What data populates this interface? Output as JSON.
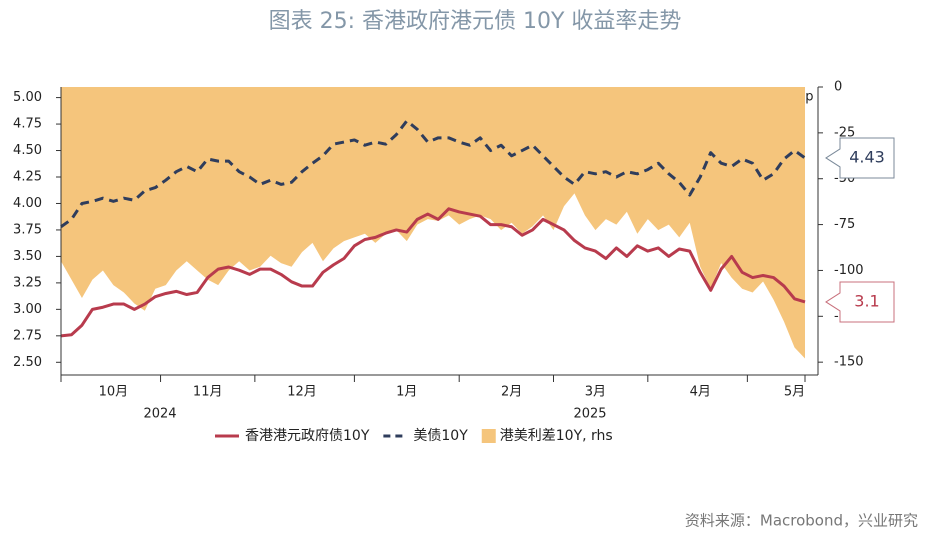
{
  "chart_data": {
    "type": "line",
    "title": "图表 25:      香港政府港元债 10Y 收益率走势",
    "source": "资料来源：Macrobond，兴业研究",
    "y_unit": "%",
    "y2_unit": "bp",
    "years": [
      "2024",
      "2025"
    ],
    "categories": [
      null,
      null,
      null,
      null,
      null,
      "10月",
      null,
      null,
      null,
      null,
      null,
      null,
      null,
      null,
      "11月",
      null,
      null,
      null,
      null,
      null,
      null,
      null,
      null,
      "12月",
      null,
      null,
      null,
      null,
      null,
      null,
      null,
      null,
      null,
      "1月",
      null,
      null,
      null,
      null,
      null,
      null,
      null,
      null,
      null,
      "2月",
      null,
      null,
      null,
      null,
      null,
      null,
      null,
      "3月",
      null,
      null,
      null,
      null,
      null,
      null,
      null,
      null,
      null,
      "4月",
      null,
      null,
      null,
      null,
      null,
      null,
      null,
      null,
      "5月",
      null
    ],
    "ylim": [
      2.38,
      5.1
    ],
    "yticks": [
      {
        "value": 2.5,
        "label": "2.50"
      },
      {
        "value": 2.75,
        "label": "2.75"
      },
      {
        "value": 3,
        "label": "3.00"
      },
      {
        "value": 3.25,
        "label": "3.25"
      },
      {
        "value": 3.5,
        "label": "3.50"
      },
      {
        "value": 3.75,
        "label": "3.75"
      },
      {
        "value": 4,
        "label": "4.00"
      },
      {
        "value": 4.25,
        "label": "4.25"
      },
      {
        "value": 4.5,
        "label": "4.50"
      },
      {
        "value": 4.75,
        "label": "4.75"
      },
      {
        "value": 5,
        "label": "5.00"
      }
    ],
    "y2lim": [
      -157,
      0
    ],
    "y2ticks": [
      -150,
      -125,
      -100,
      -75,
      -50,
      -25,
      0
    ],
    "series": [
      {
        "name": "香港港元政府债10Y",
        "color": "#b83b4d",
        "style": "solid",
        "end_label": "3.1",
        "values": [
          2.75,
          2.76,
          2.85,
          3.0,
          3.02,
          3.05,
          3.05,
          3.0,
          3.05,
          3.12,
          3.15,
          3.17,
          3.14,
          3.16,
          3.3,
          3.38,
          3.4,
          3.37,
          3.33,
          3.38,
          3.38,
          3.33,
          3.26,
          3.22,
          3.22,
          3.35,
          3.42,
          3.48,
          3.6,
          3.66,
          3.68,
          3.72,
          3.75,
          3.73,
          3.85,
          3.9,
          3.85,
          3.95,
          3.92,
          3.9,
          3.88,
          3.8,
          3.8,
          3.78,
          3.7,
          3.75,
          3.85,
          3.8,
          3.75,
          3.65,
          3.58,
          3.55,
          3.48,
          3.58,
          3.5,
          3.6,
          3.55,
          3.58,
          3.5,
          3.57,
          3.55,
          3.35,
          3.18,
          3.38,
          3.5,
          3.35,
          3.3,
          3.32,
          3.3,
          3.22,
          3.1,
          3.07
        ]
      },
      {
        "name": "美债10Y",
        "color": "#2f3d5c",
        "style": "dashed",
        "end_label": "4.43",
        "values": [
          3.78,
          3.85,
          4.0,
          4.02,
          4.05,
          4.02,
          4.05,
          4.03,
          4.12,
          4.15,
          4.22,
          4.3,
          4.35,
          4.3,
          4.42,
          4.4,
          4.4,
          4.3,
          4.25,
          4.18,
          4.22,
          4.18,
          4.2,
          4.3,
          4.38,
          4.45,
          4.56,
          4.58,
          4.6,
          4.55,
          4.58,
          4.56,
          4.65,
          4.78,
          4.7,
          4.58,
          4.62,
          4.62,
          4.58,
          4.55,
          4.62,
          4.5,
          4.55,
          4.45,
          4.5,
          4.55,
          4.45,
          4.35,
          4.25,
          4.18,
          4.3,
          4.28,
          4.3,
          4.25,
          4.3,
          4.28,
          4.32,
          4.38,
          4.28,
          4.2,
          4.08,
          4.25,
          4.48,
          4.38,
          4.35,
          4.42,
          4.38,
          4.22,
          4.28,
          4.42,
          4.5,
          4.43
        ]
      },
      {
        "name": "港美利差10Y, rhs",
        "color": "#f5c57c",
        "style": "area",
        "axis": "y2",
        "values": [
          -95,
          -105,
          -115,
          -105,
          -100,
          -108,
          -112,
          -118,
          -122,
          -110,
          -108,
          -100,
          -95,
          -100,
          -105,
          -108,
          -100,
          -95,
          -100,
          -98,
          -92,
          -96,
          -98,
          -90,
          -85,
          -95,
          -88,
          -84,
          -82,
          -80,
          -85,
          -80,
          -78,
          -84,
          -75,
          -72,
          -73,
          -70,
          -75,
          -72,
          -70,
          -72,
          -78,
          -74,
          -80,
          -76,
          -70,
          -78,
          -65,
          -58,
          -70,
          -78,
          -72,
          -75,
          -68,
          -80,
          -72,
          -78,
          -75,
          -82,
          -74,
          -98,
          -110,
          -96,
          -104,
          -110,
          -112,
          -106,
          -116,
          -128,
          -142,
          -148
        ]
      }
    ]
  }
}
